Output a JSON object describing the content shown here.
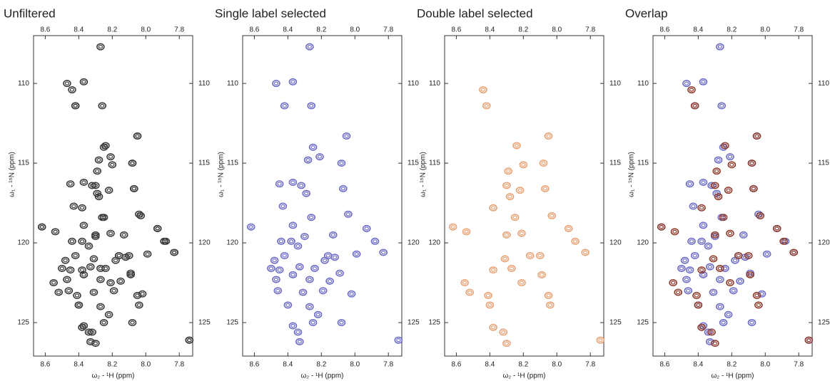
{
  "chart_data": [
    {
      "type": "scatter",
      "title": "Unfiltered",
      "xlabel": "ω₂ - ¹H (ppm)",
      "ylabel": "ω₁ - ¹⁵N (ppm)",
      "xlim": [
        8.67,
        7.72
      ],
      "ylim": [
        127.1,
        107.0
      ],
      "xticks": [
        8.6,
        8.4,
        8.2,
        {
          "value": 8,
          "label": "8.0"
        },
        7.8
      ],
      "yticks": [
        110,
        115,
        120,
        125
      ],
      "series": [
        {
          "color": "#3a3a3a",
          "x": [
            8.27,
            8.47,
            8.37,
            8.42,
            8.26,
            8.05,
            8.25,
            8.28,
            8.21,
            8.08,
            8.45,
            8.37,
            8.32,
            8.29,
            8.07,
            8.43,
            8.26,
            8.04,
            8.62,
            8.37,
            8.44,
            8.38,
            8.3,
            8.13,
            7.93,
            7.88,
            8.34,
            8.16,
            8.12,
            7.83,
            8.48,
            8.42,
            8.5,
            8.45,
            8.33,
            8.24,
            8.18,
            8.09,
            8.47,
            8.37,
            8.27,
            8.15,
            8.46,
            8.31,
            8.19,
            8.02,
            8.4,
            8.27,
            8.22,
            8.37,
            8.34,
            8.25,
            8.08,
            8.33,
            7.74,
            7.99
          ],
          "y": [
            107.7,
            110.0,
            109.9,
            111.4,
            111.4,
            113.3,
            114.0,
            114.8,
            114.6,
            115.0,
            116.3,
            116.2,
            116.4,
            116.9,
            116.6,
            117.7,
            118.4,
            118.2,
            119.0,
            118.9,
            119.9,
            119.9,
            119.6,
            119.5,
            119.1,
            119.9,
            120.2,
            120.8,
            120.9,
            120.6,
            121.1,
            120.8,
            121.6,
            121.7,
            121.5,
            121.6,
            121.1,
            121.9,
            122.3,
            122.0,
            122.3,
            122.4,
            123.0,
            123.1,
            123.0,
            123.2,
            123.9,
            124.0,
            124.5,
            125.2,
            125.6,
            125.0,
            125.0,
            126.2,
            126.1,
            120.7
          ]
        },
        {
          "color": "#3a3a3a",
          "x": [
            8.44,
            8.42,
            8.05,
            8.24,
            8.29,
            8.2,
            8.08,
            8.3,
            8.28,
            8.22,
            8.07,
            8.38,
            8.25,
            8.03,
            8.62,
            8.54,
            8.3,
            8.21,
            7.93,
            7.89,
            7.83,
            8.16,
            8.1,
            8.31,
            8.38,
            8.27,
            8.09,
            8.55,
            8.21,
            8.52,
            8.41,
            8.05,
            8.4,
            8.04,
            8.38,
            8.32,
            8.3,
            7.74
          ],
          "y": [
            110.4,
            111.4,
            113.3,
            113.9,
            115.5,
            115.1,
            115.0,
            116.4,
            117.1,
            116.7,
            116.6,
            117.8,
            118.4,
            118.3,
            119.0,
            119.3,
            119.5,
            119.4,
            119.1,
            119.9,
            120.6,
            120.8,
            120.8,
            121.0,
            121.7,
            121.6,
            122.0,
            122.5,
            122.5,
            123.1,
            123.3,
            123.3,
            123.9,
            123.9,
            125.3,
            125.6,
            126.3,
            126.1
          ]
        }
      ]
    },
    {
      "type": "scatter",
      "title": "Single label selected",
      "xlabel": "ω₂ - ¹H (ppm)",
      "ylabel": "ω₁ - ¹⁵N (ppm)",
      "xlim": [
        8.67,
        7.72
      ],
      "ylim": [
        127.1,
        107.0
      ],
      "xticks": [
        8.6,
        8.4,
        8.2,
        {
          "value": 8,
          "label": "8.0"
        },
        7.8
      ],
      "yticks": [
        110,
        115,
        120,
        125
      ],
      "series": [
        {
          "color": "#6b6bc9",
          "x": [
            8.27,
            8.47,
            8.37,
            8.42,
            8.26,
            8.05,
            8.25,
            8.28,
            8.21,
            8.08,
            8.45,
            8.37,
            8.32,
            8.29,
            8.07,
            8.43,
            8.26,
            8.04,
            8.62,
            8.37,
            8.44,
            8.38,
            8.3,
            8.13,
            7.93,
            7.88,
            8.34,
            8.16,
            8.12,
            7.83,
            8.48,
            8.42,
            8.5,
            8.45,
            8.33,
            8.24,
            8.18,
            8.09,
            8.47,
            8.37,
            8.27,
            8.15,
            8.46,
            8.31,
            8.19,
            8.02,
            8.4,
            8.27,
            8.22,
            8.37,
            8.34,
            8.25,
            8.08,
            8.33,
            7.74,
            7.99
          ],
          "y": [
            107.7,
            110.0,
            109.9,
            111.4,
            111.4,
            113.3,
            114.0,
            114.8,
            114.6,
            115.0,
            116.3,
            116.2,
            116.4,
            116.9,
            116.6,
            117.7,
            118.4,
            118.2,
            119.0,
            118.9,
            119.9,
            119.9,
            119.6,
            119.5,
            119.1,
            119.9,
            120.2,
            120.8,
            120.9,
            120.6,
            121.1,
            120.8,
            121.6,
            121.7,
            121.5,
            121.6,
            121.1,
            121.9,
            122.3,
            122.0,
            122.3,
            122.4,
            123.0,
            123.1,
            123.0,
            123.2,
            123.9,
            124.0,
            124.5,
            125.2,
            125.6,
            125.0,
            125.0,
            126.2,
            126.1,
            120.7
          ]
        }
      ]
    },
    {
      "type": "scatter",
      "title": "Double label selected",
      "xlabel": "ω₂ - ¹H (ppm)",
      "ylabel": "ω₁ - ¹⁵N (ppm)",
      "xlim": [
        8.67,
        7.72
      ],
      "ylim": [
        127.1,
        107.0
      ],
      "xticks": [
        8.6,
        8.4,
        8.2,
        {
          "value": 8,
          "label": "8.0"
        },
        7.8
      ],
      "yticks": [
        110,
        115,
        120,
        125
      ],
      "series": [
        {
          "color": "#e8a274",
          "x": [
            8.44,
            8.42,
            8.05,
            8.24,
            8.29,
            8.2,
            8.08,
            8.3,
            8.28,
            8.22,
            8.07,
            8.38,
            8.25,
            8.03,
            8.62,
            8.54,
            8.3,
            8.21,
            7.93,
            7.89,
            7.83,
            8.16,
            8.1,
            8.31,
            8.38,
            8.27,
            8.09,
            8.55,
            8.21,
            8.52,
            8.41,
            8.05,
            8.4,
            8.04,
            8.38,
            8.32,
            8.3,
            7.74
          ],
          "y": [
            110.4,
            111.4,
            113.3,
            113.9,
            115.5,
            115.1,
            115.0,
            116.4,
            117.1,
            116.7,
            116.6,
            117.8,
            118.4,
            118.3,
            119.0,
            119.3,
            119.5,
            119.4,
            119.1,
            119.9,
            120.6,
            120.8,
            120.8,
            121.0,
            121.7,
            121.6,
            122.0,
            122.5,
            122.5,
            123.1,
            123.3,
            123.3,
            123.9,
            123.9,
            125.3,
            125.6,
            126.3,
            126.1
          ]
        }
      ]
    },
    {
      "type": "scatter",
      "title": "Overlap",
      "xlabel": "ω₂ - ¹H (ppm)",
      "ylabel": "ω₁ - ¹⁵N (ppm)",
      "xlim": [
        8.67,
        7.72
      ],
      "ylim": [
        127.1,
        107.0
      ],
      "xticks": [
        8.6,
        8.4,
        8.2,
        {
          "value": 8,
          "label": "8.0"
        },
        7.8
      ],
      "yticks": [
        110,
        115,
        120,
        125
      ],
      "series": [
        {
          "color": "#6b6bc9",
          "x": [
            8.27,
            8.47,
            8.37,
            8.42,
            8.26,
            8.05,
            8.25,
            8.28,
            8.21,
            8.08,
            8.45,
            8.37,
            8.32,
            8.29,
            8.07,
            8.43,
            8.26,
            8.04,
            8.62,
            8.37,
            8.44,
            8.38,
            8.3,
            8.13,
            7.93,
            7.88,
            8.34,
            8.16,
            8.12,
            7.83,
            8.48,
            8.42,
            8.5,
            8.45,
            8.33,
            8.24,
            8.18,
            8.09,
            8.47,
            8.37,
            8.27,
            8.15,
            8.46,
            8.31,
            8.19,
            8.02,
            8.4,
            8.27,
            8.22,
            8.37,
            8.34,
            8.25,
            8.08,
            8.33,
            7.74,
            7.99
          ],
          "y": [
            107.7,
            110.0,
            109.9,
            111.4,
            111.4,
            113.3,
            114.0,
            114.8,
            114.6,
            115.0,
            116.3,
            116.2,
            116.4,
            116.9,
            116.6,
            117.7,
            118.4,
            118.2,
            119.0,
            118.9,
            119.9,
            119.9,
            119.6,
            119.5,
            119.1,
            119.9,
            120.2,
            120.8,
            120.9,
            120.6,
            121.1,
            120.8,
            121.6,
            121.7,
            121.5,
            121.6,
            121.1,
            121.9,
            122.3,
            122.0,
            122.3,
            122.4,
            123.0,
            123.1,
            123.0,
            123.2,
            123.9,
            124.0,
            124.5,
            125.2,
            125.6,
            125.0,
            125.0,
            126.2,
            126.1,
            120.7
          ]
        },
        {
          "color": "#8e3b2c",
          "x": [
            8.44,
            8.42,
            8.05,
            8.24,
            8.29,
            8.2,
            8.08,
            8.3,
            8.28,
            8.22,
            8.07,
            8.38,
            8.25,
            8.03,
            8.62,
            8.54,
            8.3,
            8.21,
            7.93,
            7.89,
            7.83,
            8.16,
            8.1,
            8.31,
            8.38,
            8.27,
            8.09,
            8.55,
            8.21,
            8.52,
            8.41,
            8.05,
            8.4,
            8.04,
            8.38,
            8.32,
            8.3,
            7.74
          ],
          "y": [
            110.4,
            111.4,
            113.3,
            113.9,
            115.5,
            115.1,
            115.0,
            116.4,
            117.1,
            116.7,
            116.6,
            117.8,
            118.4,
            118.3,
            119.0,
            119.3,
            119.5,
            119.4,
            119.1,
            119.9,
            120.6,
            120.8,
            120.8,
            121.0,
            121.7,
            121.6,
            122.0,
            122.5,
            122.5,
            123.1,
            123.3,
            123.3,
            123.9,
            123.9,
            125.3,
            125.6,
            126.3,
            126.1
          ]
        }
      ]
    }
  ]
}
